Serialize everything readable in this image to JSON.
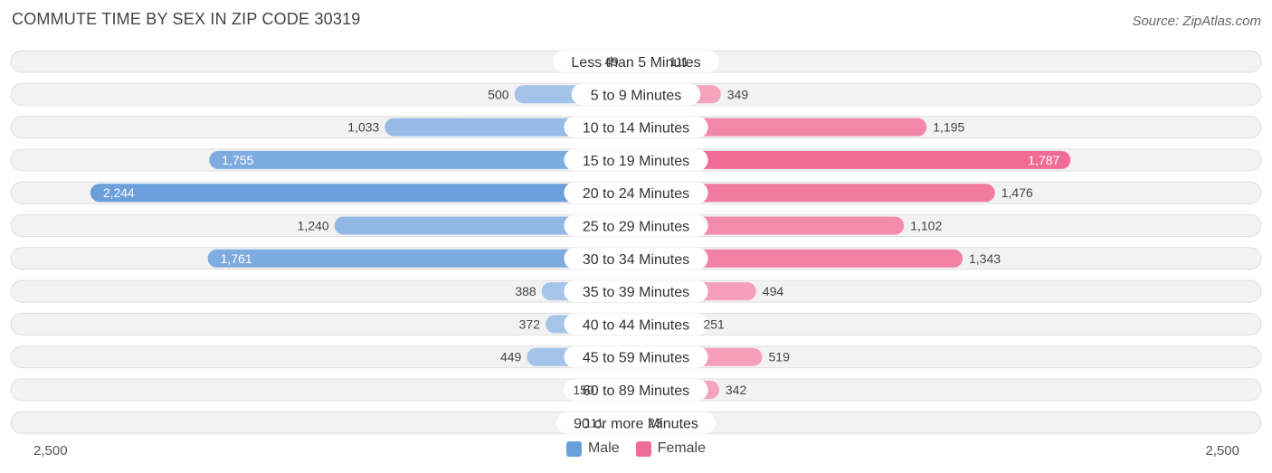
{
  "title": "COMMUTE TIME BY SEX IN ZIP CODE 30319",
  "source": "Source: ZipAtlas.com",
  "colors": {
    "male": "#6a9fdb",
    "male_light": "#a9c7ea",
    "female": "#f06b96",
    "female_light": "#f6a7c1",
    "row_bg": "#efefef"
  },
  "legend": [
    {
      "label": "Male",
      "color": "#6a9fdb"
    },
    {
      "label": "Female",
      "color": "#f06b96"
    }
  ],
  "axis": {
    "left_label": "2,500",
    "right_label": "2,500"
  },
  "chart_data": {
    "type": "bar",
    "orientation": "horizontal-diverging",
    "title": "COMMUTE TIME BY SEX IN ZIP CODE 30319",
    "xlim": [
      -2500,
      2500
    ],
    "categories": [
      "Less than 5 Minutes",
      "5 to 9 Minutes",
      "10 to 14 Minutes",
      "15 to 19 Minutes",
      "20 to 24 Minutes",
      "25 to 29 Minutes",
      "30 to 34 Minutes",
      "35 to 39 Minutes",
      "40 to 44 Minutes",
      "45 to 59 Minutes",
      "60 to 89 Minutes",
      "90 or more Minutes"
    ],
    "series": [
      {
        "name": "Male",
        "values": [
          49,
          500,
          1033,
          1755,
          2244,
          1240,
          1761,
          388,
          372,
          449,
          150,
          111
        ],
        "labels": [
          "49",
          "500",
          "1,033",
          "1,755",
          "2,244",
          "1,240",
          "1,761",
          "388",
          "372",
          "449",
          "150",
          "111"
        ]
      },
      {
        "name": "Female",
        "values": [
          111,
          349,
          1195,
          1787,
          1476,
          1102,
          1343,
          494,
          251,
          519,
          342,
          23
        ],
        "labels": [
          "111",
          "349",
          "1,195",
          "1,787",
          "1,476",
          "1,102",
          "1,343",
          "494",
          "251",
          "519",
          "342",
          "23"
        ]
      }
    ]
  }
}
